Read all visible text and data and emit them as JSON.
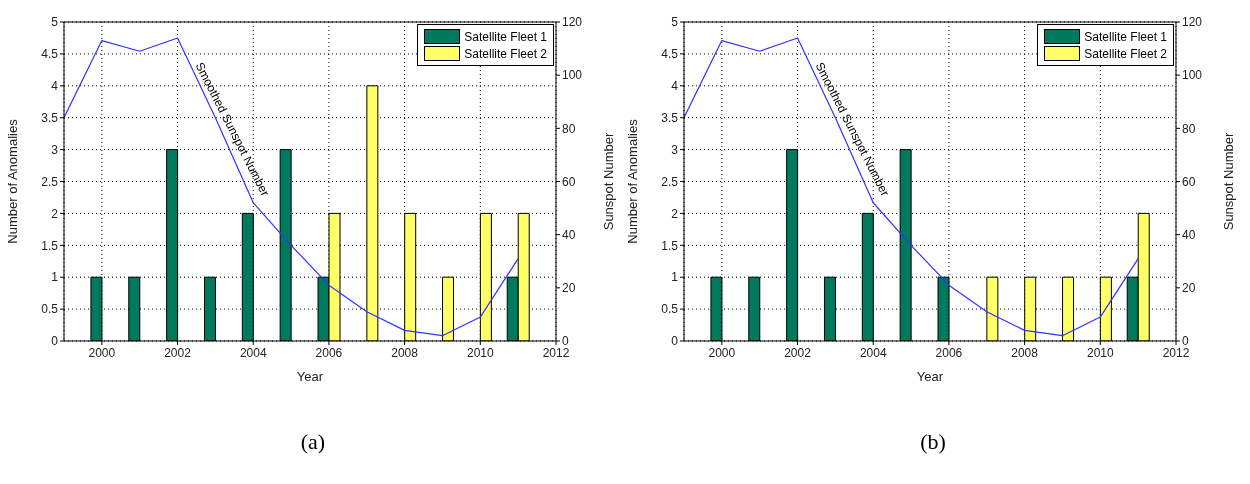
{
  "chart_data": [
    {
      "type": "bar",
      "xlabel": "Year",
      "ylabel": "Number of Anomalies",
      "y2label": "Sunspot Number",
      "annotations": [
        "Smoothed Sunspot Number",
        "(a)"
      ],
      "x": [
        2000,
        2001,
        2002,
        2003,
        2004,
        2005,
        2006,
        2007,
        2008,
        2009,
        2010,
        2011
      ],
      "series": [
        {
          "name": "Satellite Fleet 1",
          "color": "#007a5e",
          "values": [
            1,
            1,
            3,
            1,
            2,
            3,
            1,
            0,
            0,
            0,
            0,
            1
          ]
        },
        {
          "name": "Satellite Fleet 2",
          "color": "#ffff66",
          "values": [
            0,
            0,
            0,
            0,
            0,
            0,
            2,
            4,
            2,
            1,
            2,
            2
          ]
        },
        {
          "type": "line",
          "axis": "y2",
          "color": "#3333ff",
          "x": [
            1999,
            2000,
            2001,
            2002,
            2003,
            2004,
            2005,
            2006,
            2007,
            2008,
            2009,
            2010,
            2011
          ],
          "values": [
            84,
            113,
            109,
            114,
            84,
            52,
            36,
            21,
            11,
            4,
            2,
            9,
            31
          ]
        }
      ],
      "xlim": [
        1999,
        2012
      ],
      "xticks": [
        2000,
        2002,
        2004,
        2006,
        2008,
        2010,
        2012
      ],
      "ylim": [
        0,
        5
      ],
      "yticks": [
        0,
        0.5,
        1,
        1.5,
        2,
        2.5,
        3,
        3.5,
        4,
        4.5,
        5
      ],
      "y2lim": [
        0,
        120
      ],
      "y2ticks": [
        0,
        20,
        40,
        60,
        80,
        100,
        120
      ],
      "grid": true,
      "legend": "top right",
      "line_style": "solid",
      "marker": "none"
    },
    {
      "type": "bar",
      "xlabel": "Year",
      "ylabel": "Number of Anomalies",
      "y2label": "Sunspot Number",
      "annotations": [
        "Smoothed Sunspot Number",
        "(b)"
      ],
      "x": [
        2000,
        2001,
        2002,
        2003,
        2004,
        2005,
        2006,
        2007,
        2008,
        2009,
        2010,
        2011
      ],
      "series": [
        {
          "name": "Satellite Fleet 1",
          "color": "#007a5e",
          "values": [
            1,
            1,
            3,
            1,
            2,
            3,
            1,
            0,
            0,
            0,
            0,
            1
          ]
        },
        {
          "name": "Satellite Fleet 2",
          "color": "#ffff66",
          "values": [
            0,
            0,
            0,
            0,
            0,
            0,
            0,
            1,
            1,
            1,
            1,
            2
          ]
        },
        {
          "type": "line",
          "axis": "y2",
          "color": "#3333ff",
          "x": [
            1999,
            2000,
            2001,
            2002,
            2003,
            2004,
            2005,
            2006,
            2007,
            2008,
            2009,
            2010,
            2011
          ],
          "values": [
            84,
            113,
            109,
            114,
            84,
            52,
            36,
            21,
            11,
            4,
            2,
            9,
            31
          ]
        }
      ],
      "xlim": [
        1999,
        2012
      ],
      "xticks": [
        2000,
        2002,
        2004,
        2006,
        2008,
        2010,
        2012
      ],
      "ylim": [
        0,
        5
      ],
      "yticks": [
        0,
        0.5,
        1,
        1.5,
        2,
        2.5,
        3,
        3.5,
        4,
        4.5,
        5
      ],
      "y2lim": [
        0,
        120
      ],
      "y2ticks": [
        0,
        20,
        40,
        60,
        80,
        100,
        120
      ],
      "grid": true,
      "legend": "top right",
      "line_style": "solid",
      "marker": "none"
    }
  ]
}
